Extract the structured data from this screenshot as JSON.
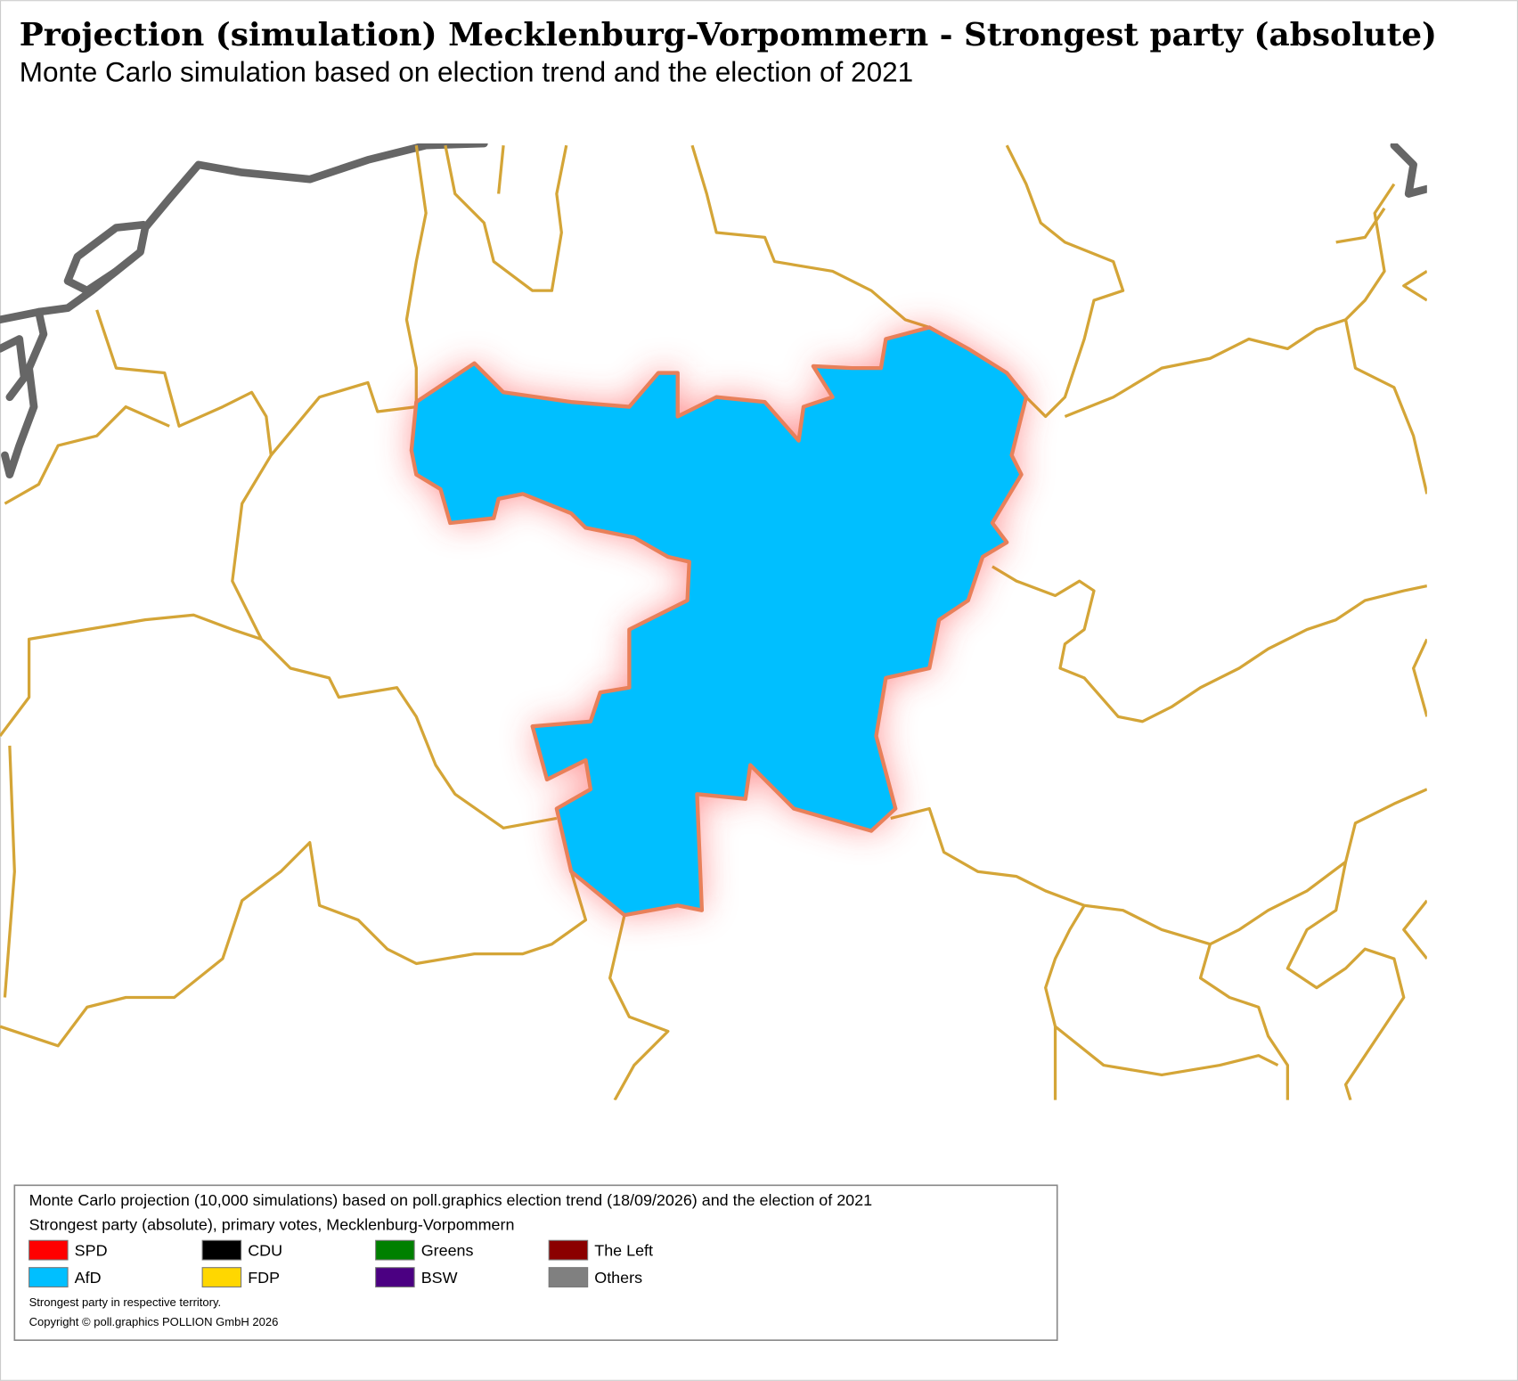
{
  "header": {
    "title": "Projection (simulation) Mecklenburg-Vorpommern - Strongest party (absolute)",
    "subtitle": "Monte Carlo simulation based on election trend and the election of 2021"
  },
  "legend": {
    "lines": [
      "Monte Carlo projection (10,000 simulations) based on poll.graphics election trend (18/09/2026) and the election of 2021",
      "Strongest party (absolute), primary votes, Mecklenburg-Vorpommern"
    ],
    "items": [
      {
        "name": "SPD",
        "color": "#ff0000"
      },
      {
        "name": "CDU",
        "color": "#000000"
      },
      {
        "name": "Greens",
        "color": "#008000"
      },
      {
        "name": "The Left",
        "color": "#8b0000"
      },
      {
        "name": "AfD",
        "color": "#00bfff"
      },
      {
        "name": "FDP",
        "color": "#ffd700"
      },
      {
        "name": "BSW",
        "color": "#4b0082"
      },
      {
        "name": "Others",
        "color": "#808080"
      }
    ],
    "footnote": "Strongest party in respective territory.",
    "copyright": "Copyright © poll.graphics POLLION GmbH 2026"
  }
}
